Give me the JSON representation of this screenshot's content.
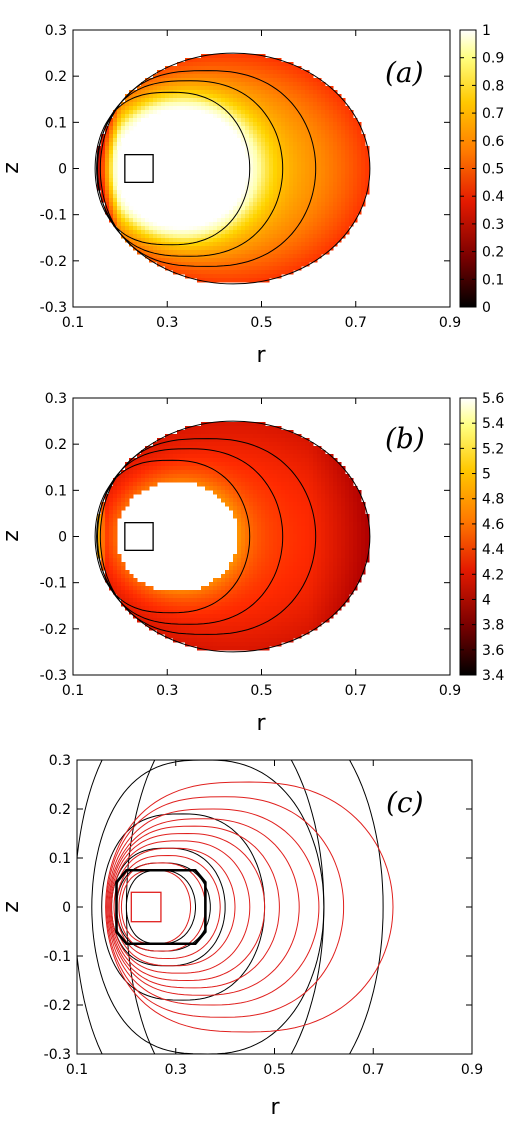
{
  "chart_data": [
    {
      "type": "heatmap",
      "panel_label": "(a)",
      "xlabel": "r",
      "ylabel": "z",
      "xlim": [
        0.1,
        0.9
      ],
      "ylim": [
        -0.3,
        0.3
      ],
      "xticks": [
        "0.1",
        "0.3",
        "0.5",
        "0.7",
        "0.9"
      ],
      "yticks": [
        "0.3",
        "0.2",
        "0.1",
        "0",
        "-0.1",
        "-0.2",
        "-0.3"
      ],
      "colorbar": {
        "range": [
          0,
          1
        ],
        "ticks": [
          "1",
          "0.9",
          "0.8",
          "0.7",
          "0.6",
          "0.5",
          "0.4",
          "0.3",
          "0.2",
          "0.1",
          "0"
        ],
        "colormap": [
          "#000000",
          "#b00000",
          "#ff2a00",
          "#ff8a00",
          "#ffd400",
          "#ffffb0",
          "#ffffff"
        ]
      },
      "domain": {
        "center_r": 0.44,
        "half_width_r": 0.29,
        "half_height_z": 0.25
      },
      "hole": {
        "center_r": 0.32,
        "half_width_r": 0.13,
        "half_height_z": 0.12
      },
      "coil_box": {
        "r": [
          0.21,
          0.27
        ],
        "z": [
          -0.03,
          0.03
        ]
      },
      "contours": [
        {
          "r_min": 0.147,
          "r_max": 0.475,
          "z_half": 0.165
        },
        {
          "r_min": 0.152,
          "r_max": 0.545,
          "z_half": 0.19
        },
        {
          "r_min": 0.158,
          "r_max": 0.615,
          "z_half": 0.212
        }
      ],
      "field_range": [
        0,
        1
      ]
    },
    {
      "type": "heatmap",
      "panel_label": "(b)",
      "xlabel": "r",
      "ylabel": "z",
      "xlim": [
        0.1,
        0.9
      ],
      "ylim": [
        -0.3,
        0.3
      ],
      "xticks": [
        "0.1",
        "0.3",
        "0.5",
        "0.7",
        "0.9"
      ],
      "yticks": [
        "0.3",
        "0.2",
        "0.1",
        "0",
        "-0.1",
        "-0.2",
        "-0.3"
      ],
      "colorbar": {
        "range": [
          3.4,
          5.6
        ],
        "ticks": [
          "5.6",
          "5.4",
          "5.2",
          "5",
          "4.8",
          "4.6",
          "4.4",
          "4.2",
          "4",
          "3.8",
          "3.6",
          "3.4"
        ],
        "colormap": [
          "#000000",
          "#b00000",
          "#ff2a00",
          "#ff8a00",
          "#ffd400",
          "#ffffb0",
          "#ffffff"
        ]
      },
      "domain": {
        "center_r": 0.44,
        "half_width_r": 0.29,
        "half_height_z": 0.25
      },
      "hole": {
        "center_r": 0.32,
        "half_width_r": 0.13,
        "half_height_z": 0.12
      },
      "coil_box": {
        "r": [
          0.21,
          0.27
        ],
        "z": [
          -0.03,
          0.03
        ]
      },
      "contours": [
        {
          "r_min": 0.147,
          "r_max": 0.475,
          "z_half": 0.165
        },
        {
          "r_min": 0.152,
          "r_max": 0.545,
          "z_half": 0.19
        },
        {
          "r_min": 0.158,
          "r_max": 0.615,
          "z_half": 0.212
        }
      ],
      "field_range": [
        3.9,
        5.5
      ]
    },
    {
      "type": "line",
      "panel_label": "(c)",
      "xlabel": "r",
      "ylabel": "z",
      "xlim": [
        0.1,
        0.9
      ],
      "ylim": [
        -0.3,
        0.3
      ],
      "xticks": [
        "0.1",
        "0.3",
        "0.5",
        "0.7",
        "0.9"
      ],
      "yticks": [
        "0.3",
        "0.2",
        "0.1",
        "0",
        "-0.1",
        "-0.2",
        "-0.3"
      ],
      "colors": {
        "black": "#000000",
        "red": "#e0201e"
      },
      "black_contours": [
        {
          "r_min": 0.2,
          "r_max": 0.34,
          "z_half": 0.075
        },
        {
          "r_min": 0.18,
          "r_max": 0.37,
          "z_half": 0.09
        },
        {
          "r_min": 0.17,
          "r_max": 0.4,
          "z_half": 0.12
        },
        {
          "r_min": 0.15,
          "r_max": 0.48,
          "z_half": 0.19
        },
        {
          "r_min": 0.13,
          "r_max": 0.6,
          "z_half": 0.3
        }
      ],
      "black_outer_arcs": [
        {
          "side": "left",
          "r_min": 0.095,
          "r_max": 0.6,
          "z_half": 0.42
        },
        {
          "side": "right",
          "r_min": 0.2,
          "r_max": 0.72,
          "z_half": 0.42
        }
      ],
      "red_contours": [
        {
          "r_min": 0.19,
          "r_max": 0.33,
          "z_half": 0.075
        },
        {
          "r_min": 0.185,
          "r_max": 0.36,
          "z_half": 0.09
        },
        {
          "r_min": 0.18,
          "r_max": 0.39,
          "z_half": 0.105
        },
        {
          "r_min": 0.175,
          "r_max": 0.42,
          "z_half": 0.12
        },
        {
          "r_min": 0.17,
          "r_max": 0.45,
          "z_half": 0.135
        },
        {
          "r_min": 0.168,
          "r_max": 0.48,
          "z_half": 0.15
        },
        {
          "r_min": 0.166,
          "r_max": 0.51,
          "z_half": 0.165
        },
        {
          "r_min": 0.164,
          "r_max": 0.55,
          "z_half": 0.18
        },
        {
          "r_min": 0.162,
          "r_max": 0.59,
          "z_half": 0.2
        },
        {
          "r_min": 0.16,
          "r_max": 0.64,
          "z_half": 0.225
        },
        {
          "r_min": 0.158,
          "r_max": 0.74,
          "z_half": 0.255
        }
      ],
      "red_box": {
        "r": [
          0.21,
          0.27
        ],
        "z": [
          -0.03,
          0.03
        ]
      },
      "black_octagon": {
        "r": [
          0.18,
          0.36
        ],
        "z": [
          -0.075,
          0.075
        ]
      }
    }
  ]
}
